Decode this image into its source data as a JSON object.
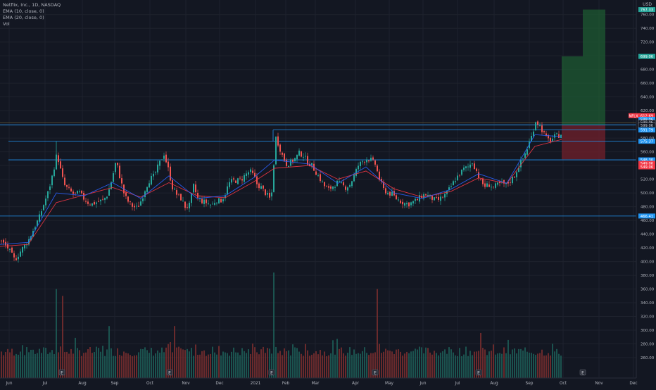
{
  "legend": {
    "symbol": "Netflix, Inc., 1D, NASDAQ",
    "ema10": "EMA (10, close, 0)",
    "ema20": "EMA (20, close, 0)",
    "vol": "Vol"
  },
  "currency": "USD",
  "colors": {
    "background": "#131722",
    "up": "#26a69a",
    "down": "#ef5350",
    "ema_fast": "#2962ff",
    "ema_slow": "#f23645",
    "hline": "#2196f3",
    "profit_zone": "#1e5a32",
    "loss_zone": "#6b1f2a"
  },
  "chart_data": {
    "type": "candlestick",
    "x_ticks": [
      "Jun",
      "Jul",
      "Aug",
      "Sep",
      "Oct",
      "Nov",
      "Dec",
      "2021",
      "Feb",
      "Mar",
      "Apr",
      "May",
      "Jun",
      "Jul",
      "Aug",
      "Sep",
      "Oct",
      "Nov",
      "Dec"
    ],
    "y_ticks": [
      "760.00",
      "740.00",
      "720.00",
      "700.00",
      "680.00",
      "660.00",
      "640.00",
      "620.00",
      "600.00",
      "580.00",
      "560.00",
      "540.00",
      "520.00",
      "500.00",
      "480.00",
      "460.00",
      "440.00",
      "420.00",
      "400.00",
      "380.00",
      "360.00",
      "340.00",
      "320.00",
      "300.00",
      "280.00",
      "260.00"
    ],
    "ylim": [
      252,
      771
    ],
    "price_path": [
      [
        0,
        430
      ],
      [
        10,
        420
      ],
      [
        20,
        402
      ],
      [
        30,
        418
      ],
      [
        40,
        432
      ],
      [
        48,
        450
      ],
      [
        55,
        465
      ],
      [
        62,
        486
      ],
      [
        68,
        503
      ],
      [
        74,
        528
      ],
      [
        80,
        558
      ],
      [
        84,
        538
      ],
      [
        90,
        512
      ],
      [
        96,
        505
      ],
      [
        104,
        498
      ],
      [
        112,
        500
      ],
      [
        118,
        492
      ],
      [
        124,
        486
      ],
      [
        130,
        484
      ],
      [
        138,
        487
      ],
      [
        146,
        490
      ],
      [
        152,
        498
      ],
      [
        158,
        520
      ],
      [
        164,
        547
      ],
      [
        170,
        520
      ],
      [
        176,
        496
      ],
      [
        182,
        486
      ],
      [
        188,
        480
      ],
      [
        194,
        478
      ],
      [
        200,
        490
      ],
      [
        206,
        508
      ],
      [
        212,
        520
      ],
      [
        218,
        525
      ],
      [
        224,
        540
      ],
      [
        232,
        557
      ],
      [
        238,
        535
      ],
      [
        244,
        508
      ],
      [
        250,
        498
      ],
      [
        256,
        492
      ],
      [
        262,
        480
      ],
      [
        268,
        482
      ],
      [
        274,
        510
      ],
      [
        280,
        492
      ],
      [
        286,
        488
      ],
      [
        292,
        486
      ],
      [
        300,
        482
      ],
      [
        306,
        490
      ],
      [
        312,
        488
      ],
      [
        318,
        496
      ],
      [
        324,
        514
      ],
      [
        330,
        518
      ],
      [
        336,
        518
      ],
      [
        342,
        520
      ],
      [
        348,
        527
      ],
      [
        354,
        532
      ],
      [
        360,
        524
      ],
      [
        364,
        513
      ],
      [
        370,
        508
      ],
      [
        376,
        500
      ],
      [
        382,
        492
      ],
      [
        386,
        503
      ],
      [
        390,
        583
      ],
      [
        395,
        570
      ],
      [
        400,
        555
      ],
      [
        406,
        542
      ],
      [
        412,
        545
      ],
      [
        418,
        550
      ],
      [
        424,
        558
      ],
      [
        430,
        555
      ],
      [
        436,
        545
      ],
      [
        442,
        540
      ],
      [
        448,
        530
      ],
      [
        454,
        520
      ],
      [
        460,
        510
      ],
      [
        466,
        505
      ],
      [
        472,
        510
      ],
      [
        478,
        515
      ],
      [
        484,
        512
      ],
      [
        490,
        508
      ],
      [
        496,
        512
      ],
      [
        502,
        525
      ],
      [
        508,
        540
      ],
      [
        514,
        546
      ],
      [
        520,
        550
      ],
      [
        526,
        548
      ],
      [
        532,
        542
      ],
      [
        538,
        520
      ],
      [
        544,
        505
      ],
      [
        550,
        500
      ],
      [
        556,
        498
      ],
      [
        562,
        492
      ],
      [
        568,
        488
      ],
      [
        574,
        485
      ],
      [
        580,
        484
      ],
      [
        586,
        487
      ],
      [
        592,
        490
      ],
      [
        598,
        496
      ],
      [
        604,
        498
      ],
      [
        610,
        494
      ],
      [
        616,
        490
      ],
      [
        622,
        490
      ],
      [
        628,
        494
      ],
      [
        634,
        500
      ],
      [
        640,
        510
      ],
      [
        646,
        520
      ],
      [
        652,
        528
      ],
      [
        658,
        535
      ],
      [
        664,
        538
      ],
      [
        670,
        545
      ],
      [
        676,
        532
      ],
      [
        682,
        516
      ],
      [
        688,
        510
      ],
      [
        694,
        512
      ],
      [
        700,
        508
      ],
      [
        706,
        512
      ],
      [
        712,
        514
      ],
      [
        718,
        512
      ],
      [
        724,
        518
      ],
      [
        730,
        525
      ],
      [
        736,
        540
      ],
      [
        742,
        550
      ],
      [
        748,
        565
      ],
      [
        754,
        582
      ],
      [
        760,
        605
      ],
      [
        765,
        600
      ],
      [
        770,
        590
      ],
      [
        776,
        578
      ],
      [
        782,
        577
      ],
      [
        788,
        583
      ],
      [
        794,
        584
      ],
      [
        798,
        588
      ]
    ],
    "ema_fast": [
      [
        0,
        425
      ],
      [
        40,
        428
      ],
      [
        80,
        500
      ],
      [
        120,
        496
      ],
      [
        160,
        515
      ],
      [
        200,
        492
      ],
      [
        240,
        525
      ],
      [
        280,
        492
      ],
      [
        320,
        496
      ],
      [
        360,
        522
      ],
      [
        390,
        548
      ],
      [
        440,
        542
      ],
      [
        480,
        514
      ],
      [
        520,
        538
      ],
      [
        560,
        500
      ],
      [
        600,
        492
      ],
      [
        640,
        505
      ],
      [
        680,
        528
      ],
      [
        720,
        514
      ],
      [
        760,
        585
      ],
      [
        798,
        582
      ]
    ],
    "ema_slow": [
      [
        0,
        422
      ],
      [
        40,
        425
      ],
      [
        80,
        486
      ],
      [
        120,
        497
      ],
      [
        160,
        508
      ],
      [
        200,
        494
      ],
      [
        240,
        515
      ],
      [
        280,
        496
      ],
      [
        320,
        493
      ],
      [
        360,
        516
      ],
      [
        390,
        536
      ],
      [
        440,
        540
      ],
      [
        480,
        520
      ],
      [
        520,
        532
      ],
      [
        560,
        506
      ],
      [
        600,
        494
      ],
      [
        640,
        502
      ],
      [
        680,
        522
      ],
      [
        720,
        514
      ],
      [
        760,
        568
      ],
      [
        798,
        578
      ]
    ],
    "horizontal_levels": [
      {
        "price": "599.06",
        "from": 0
      },
      {
        "price": "591.79",
        "from": 388
      },
      {
        "price": "575.37",
        "from": 12
      },
      {
        "price": "548.30",
        "from": 12
      },
      {
        "price": "466.41",
        "from": 0
      }
    ],
    "position_box_1": {
      "x_from": 798,
      "x_to": 828,
      "entry": 599.06,
      "target": 699.06,
      "stop": 549.06
    },
    "position_box_2": {
      "x_from": 828,
      "x_to": 860,
      "entry": 599.06,
      "target": 767.33,
      "stop": 549.06
    },
    "price_labels": [
      {
        "text": "767.33",
        "price": 767.33,
        "color": "#26a69a"
      },
      {
        "text": "699.06",
        "price": 699.06,
        "color": "#26a69a"
      },
      {
        "text": "NFLX",
        "price": 612.69,
        "color": "#f23645",
        "side": "pair"
      },
      {
        "text": "612.69",
        "price": 612.69,
        "color": "#f23645"
      },
      {
        "text": "599.06",
        "price": 607.3,
        "color": "#2196f3"
      },
      {
        "text": "599.06",
        "price": 603.0,
        "color": "#131722"
      },
      {
        "text": "599.06",
        "price": 598.6,
        "color": "#131722"
      },
      {
        "text": "591.79",
        "price": 591.79,
        "color": "#2196f3"
      },
      {
        "text": "575.37",
        "price": 575.37,
        "color": "#2196f3"
      },
      {
        "text": "548.30",
        "price": 548.3,
        "color": "#2196f3"
      },
      {
        "text": "549.06",
        "price": 543.2,
        "color": "#f23645"
      },
      {
        "text": "549.06",
        "price": 538.0,
        "color": "#f23645"
      },
      {
        "text": "466.41",
        "price": 466.41,
        "color": "#2196f3"
      }
    ],
    "volume_spikes": [
      [
        80,
        360
      ],
      [
        90,
        350
      ],
      [
        156,
        306
      ],
      [
        248,
        306
      ],
      [
        388,
        384
      ],
      [
        536,
        360
      ],
      [
        682,
        296
      ]
    ],
    "earnings_markers": [
      88,
      241,
      386,
      533,
      680,
      828
    ]
  }
}
